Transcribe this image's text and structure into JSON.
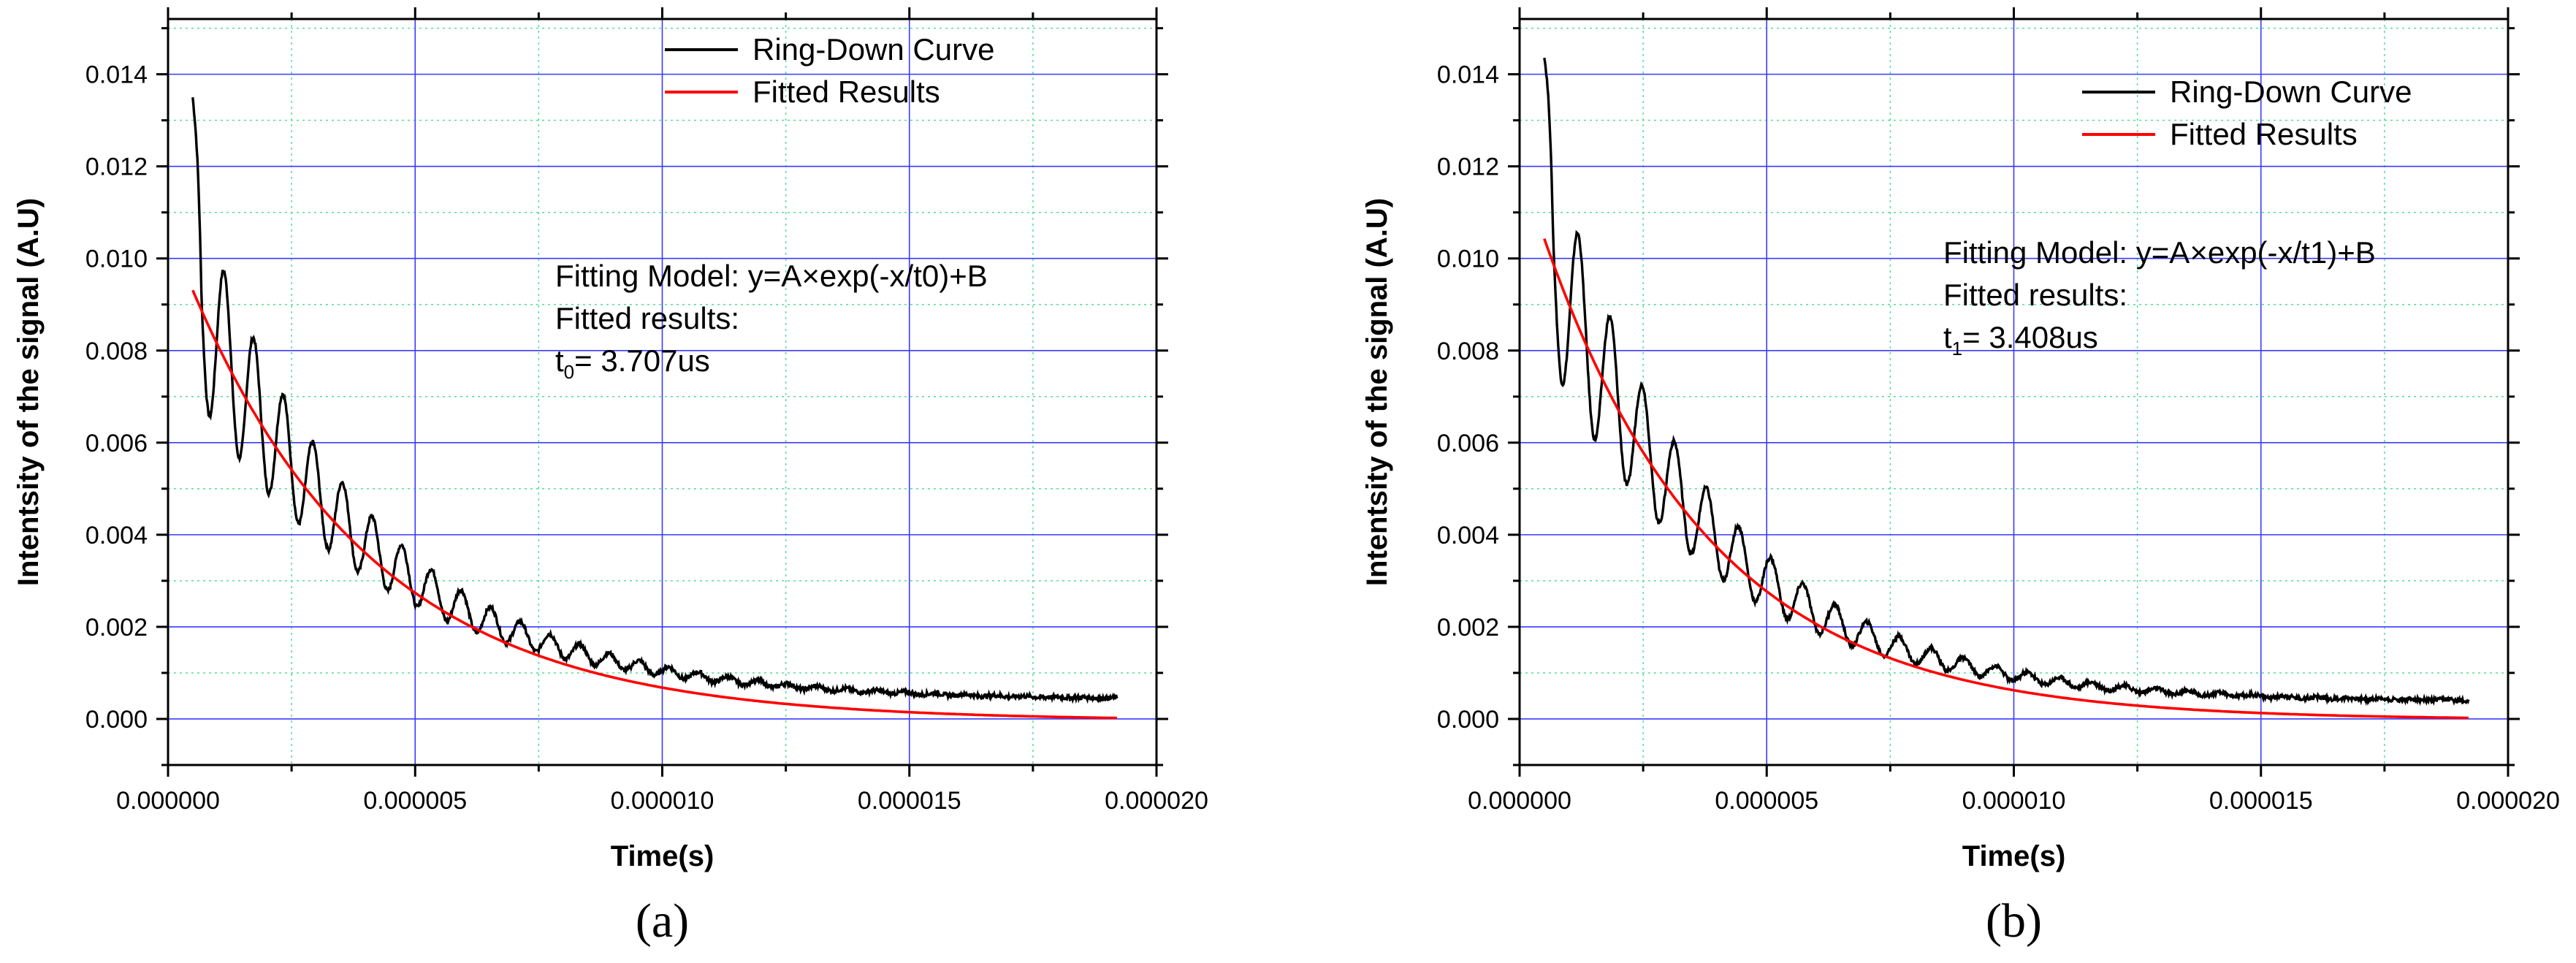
{
  "chart_data": [
    {
      "type": "line",
      "panel_label": "(a)",
      "xlabel": "Time(s)",
      "ylabel": "Intentsity of the signal (A.U)",
      "xlim": [
        0.0,
        2e-05
      ],
      "ylim": [
        -0.001,
        0.0152
      ],
      "xticks": [
        "0.000000",
        "0.000005",
        "0.000010",
        "0.000015",
        "0.000020"
      ],
      "yticks": [
        "0.000",
        "0.002",
        "0.004",
        "0.006",
        "0.008",
        "0.010",
        "0.012",
        "0.014"
      ],
      "grid": true,
      "legend_position": "top-right",
      "annotation": {
        "lines": [
          "Fitting Model: y=A×exp(-x/t0)+B",
          "Fitted results:"
        ],
        "result_prefix": "t",
        "result_sub": "0",
        "result_value": "= 3.707us"
      },
      "series": [
        {
          "name": "Ring-Down Curve",
          "color": "#000000",
          "x_start": 5e-07,
          "x_end": 1.92e-05,
          "peak": 0.0135,
          "oscillation_period": 6e-07,
          "oscillation_amplitude": 0.0022,
          "baseline": 0.00045
        },
        {
          "name": "Fitted Results",
          "color": "#ff0000",
          "model": "A*exp(-x/t)+B",
          "A": 0.0107,
          "t": 3.707e-06,
          "B": -4e-05,
          "x_start": 5e-07,
          "x_end": 1.92e-05
        }
      ]
    },
    {
      "type": "line",
      "panel_label": "(b)",
      "xlabel": "Time(s)",
      "ylabel": "Intentsity of the signal (A.U)",
      "xlim": [
        0.0,
        2e-05
      ],
      "ylim": [
        -0.001,
        0.0152
      ],
      "xticks": [
        "0.000000",
        "0.000005",
        "0.000010",
        "0.000015",
        "0.000020"
      ],
      "yticks": [
        "0.000",
        "0.002",
        "0.004",
        "0.006",
        "0.008",
        "0.010",
        "0.012",
        "0.014"
      ],
      "grid": true,
      "legend_position": "top-right",
      "annotation": {
        "lines": [
          "Fitting Model: y=A×exp(-x/t1)+B",
          "Fitted results:"
        ],
        "result_prefix": "t",
        "result_sub": "1",
        "result_value": "= 3.408us"
      },
      "series": [
        {
          "name": "Ring-Down Curve",
          "color": "#000000",
          "x_start": 5e-07,
          "x_end": 1.92e-05,
          "peak": 0.0144,
          "oscillation_period": 6.5e-07,
          "oscillation_amplitude": 0.0024,
          "baseline": 0.0004
        },
        {
          "name": "Fitted Results",
          "color": "#ff0000",
          "model": "A*exp(-x/t)+B",
          "A": 0.0121,
          "t": 3.408e-06,
          "B": -2e-05,
          "x_start": 5e-07,
          "x_end": 1.92e-05
        }
      ]
    }
  ],
  "colors": {
    "major_grid": "#3a3aff",
    "minor_grid": "#55dd99",
    "axis": "#000000"
  }
}
